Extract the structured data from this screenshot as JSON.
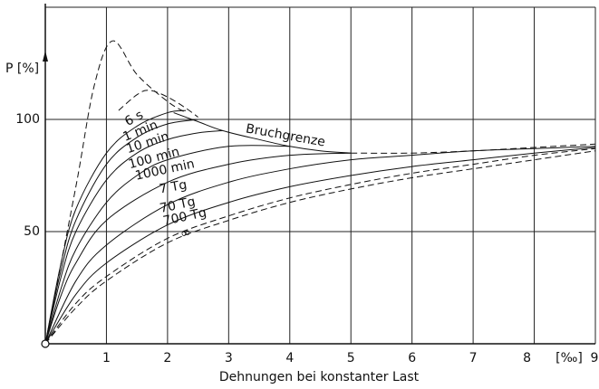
{
  "chart_data": {
    "type": "line",
    "y_label": "P [%]",
    "x_label": "Dehnungen bei konstanter Last",
    "x_unit": "[‰]",
    "xlim": [
      0,
      9
    ],
    "ylim": [
      0,
      150
    ],
    "xticks": [
      1,
      2,
      3,
      4,
      5,
      6,
      7,
      8,
      9
    ],
    "yticks": [
      50,
      100
    ],
    "grid": true,
    "color": "#111111",
    "series": [
      {
        "name": "6 s",
        "color": "#111111",
        "x": [
          0,
          0.25,
          0.5,
          1,
          1.5,
          2,
          2.3
        ],
        "values": [
          0,
          35,
          60,
          85,
          97,
          103,
          104
        ]
      },
      {
        "name": "1 min",
        "color": "#111111",
        "x": [
          0,
          0.25,
          0.5,
          1,
          1.5,
          2,
          2.5
        ],
        "values": [
          0,
          32,
          55,
          80,
          92,
          98,
          100
        ]
      },
      {
        "name": "10 min",
        "color": "#111111",
        "bold": true,
        "x": [
          0,
          0.25,
          0.5,
          1,
          1.5,
          2,
          2.5,
          2.9
        ],
        "values": [
          0,
          29,
          50,
          73,
          85,
          91,
          94,
          95
        ]
      },
      {
        "name": "100 min",
        "color": "#111111",
        "x": [
          0,
          0.25,
          0.5,
          1,
          1.5,
          2,
          3,
          4
        ],
        "values": [
          0,
          24,
          42,
          63,
          75,
          82,
          88,
          88
        ]
      },
      {
        "name": "1000 min",
        "color": "#111111",
        "x": [
          0,
          0.25,
          0.5,
          1,
          2,
          3,
          4,
          5
        ],
        "values": [
          0,
          21,
          36,
          55,
          72,
          80,
          84,
          85
        ]
      },
      {
        "name": "7 Tg",
        "color": "#111111",
        "x": [
          0,
          0.5,
          1,
          2,
          3,
          4,
          5,
          6,
          7,
          8,
          9
        ],
        "values": [
          0,
          28,
          44,
          62,
          72,
          78,
          82,
          84,
          86,
          87,
          88
        ]
      },
      {
        "name": "70 Tg",
        "color": "#111111",
        "x": [
          0,
          0.5,
          1,
          2,
          3,
          4,
          5,
          6,
          7,
          8,
          9
        ],
        "values": [
          0,
          22,
          36,
          53,
          63,
          70,
          75,
          79,
          82,
          85,
          87.5
        ]
      },
      {
        "name": "700 Tg",
        "color": "#111111",
        "dashed": true,
        "x": [
          0,
          0.5,
          1,
          2,
          3,
          4,
          5,
          6,
          7,
          8,
          9
        ],
        "values": [
          0,
          18,
          30,
          47,
          57,
          65,
          71,
          76,
          80,
          84,
          87
        ]
      },
      {
        "name": "∞",
        "color": "#111111",
        "dashed": true,
        "x": [
          0,
          0.5,
          1,
          2,
          3,
          4,
          5,
          6,
          7,
          8,
          9
        ],
        "values": [
          0,
          16,
          28,
          45,
          55,
          63,
          69,
          74,
          78,
          82,
          86
        ]
      }
    ],
    "limit_label": "Bruchgrenze",
    "limit_curves": [
      {
        "dashed": false,
        "bold": true,
        "x": [
          2.1,
          2.5,
          2.9,
          3.5,
          4,
          4.5,
          5
        ],
        "values": [
          103,
          99,
          95,
          91,
          88,
          86,
          85
        ]
      },
      {
        "dashed": true,
        "x": [
          5,
          6,
          7,
          8,
          9
        ],
        "values": [
          85,
          85,
          86,
          87.5,
          89
        ]
      },
      {
        "dashed": true,
        "x": [
          0,
          0.5,
          0.8,
          1.1,
          1.5,
          2,
          2.3
        ],
        "values": [
          0,
          70,
          115,
          135,
          120,
          108,
          103
        ]
      },
      {
        "dashed": true,
        "x": [
          1.2,
          1.5,
          1.7,
          2,
          2.3,
          2.5
        ],
        "values": [
          104,
          111,
          113,
          110,
          105,
          101
        ]
      }
    ]
  }
}
